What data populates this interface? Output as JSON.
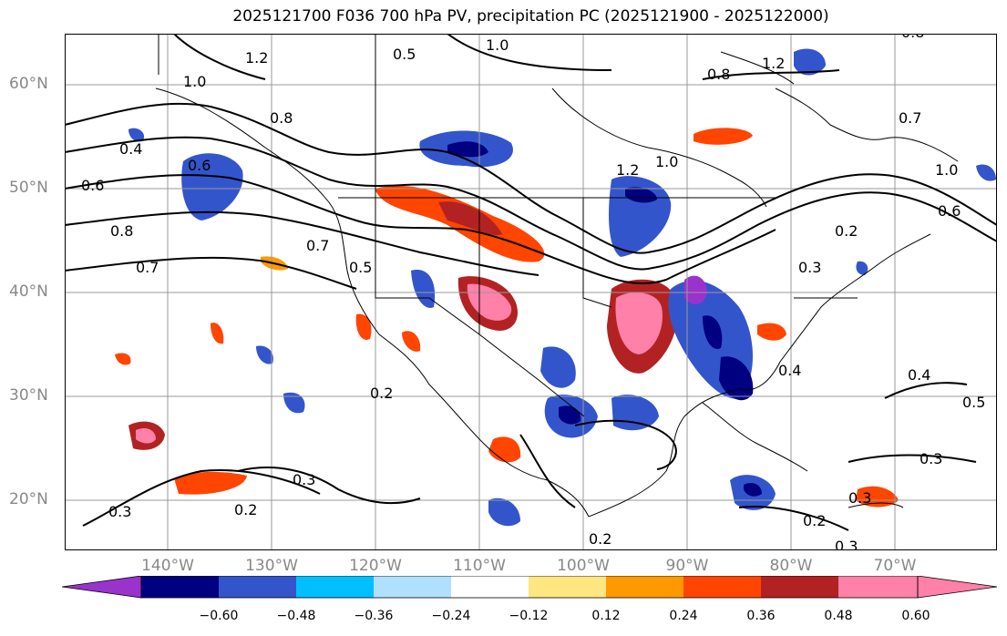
{
  "title": "2025121700 F036 700 hPa PV, precipitation PC (2025121900 - 2025122000)",
  "lat_labels": [
    "60°N",
    "50°N",
    "40°N",
    "30°N",
    "20°N"
  ],
  "lon_labels": [
    "140°W",
    "130°W",
    "120°W",
    "110°W",
    "100°W",
    "90°W",
    "80°W",
    "70°W"
  ],
  "colorbar": {
    "ticks": [
      "−0.60",
      "−0.48",
      "−0.36",
      "−0.24",
      "−0.12",
      "0.12",
      "0.24",
      "0.36",
      "0.48",
      "0.60"
    ],
    "colors": [
      "#9933cc",
      "#000080",
      "#3355cc",
      "#00bfff",
      "#b0e0ff",
      "#ffffff",
      "#ffe680",
      "#ff9900",
      "#ff4500",
      "#b22222",
      "#ff80a8"
    ]
  },
  "contour_labels": [
    "1.0",
    "1.2",
    "0.8",
    "0.5",
    "0.4",
    "0.6",
    "0.8",
    "0.7",
    "0.5",
    "1.2",
    "1.0",
    "0.8",
    "0.7",
    "0.3",
    "0.2",
    "0.3",
    "0.2",
    "0.4",
    "0.3",
    "0.4",
    "0.5",
    "0.3",
    "0.2",
    "0.3",
    "0.6",
    "1.0",
    "0.8",
    "0.7",
    "0.6",
    "1.2",
    "1.0",
    "0.2",
    "0.2",
    "0.3"
  ],
  "colors": {
    "grid": "#999999",
    "contour": "#000000",
    "label_axis": "#888888"
  }
}
